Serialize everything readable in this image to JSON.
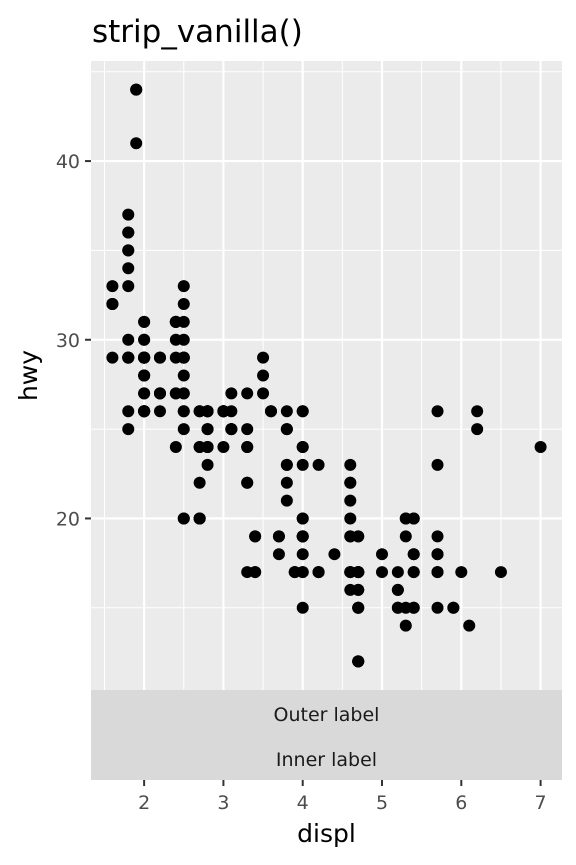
{
  "chart_data": {
    "type": "scatter",
    "title": "strip_vanilla()",
    "xlabel": "displ",
    "ylabel": "hwy",
    "xlim": [
      1.33,
      7.27
    ],
    "ylim": [
      10.4,
      45.6
    ],
    "x_ticks": [
      2,
      3,
      4,
      5,
      6,
      7
    ],
    "x_tick_labels": [
      "2",
      "3",
      "4",
      "5",
      "6",
      "7"
    ],
    "y_ticks": [
      20,
      30,
      40
    ],
    "y_tick_labels": [
      "20",
      "30",
      "40"
    ],
    "grid": true,
    "strips": [
      "Outer label",
      "Inner label"
    ],
    "strip_position": "bottom",
    "point_color": "#000000",
    "panel_background": "#ebebeb",
    "strip_background": "#d9d9d9",
    "points": [
      [
        1.8,
        29
      ],
      [
        1.8,
        29
      ],
      [
        2.0,
        31
      ],
      [
        2.0,
        30
      ],
      [
        2.8,
        26
      ],
      [
        2.8,
        26
      ],
      [
        3.1,
        27
      ],
      [
        1.8,
        26
      ],
      [
        1.8,
        25
      ],
      [
        2.0,
        28
      ],
      [
        2.0,
        27
      ],
      [
        2.8,
        25
      ],
      [
        2.8,
        25
      ],
      [
        3.1,
        25
      ],
      [
        3.1,
        25
      ],
      [
        2.8,
        24
      ],
      [
        3.1,
        25
      ],
      [
        4.2,
        23
      ],
      [
        5.3,
        20
      ],
      [
        5.3,
        15
      ],
      [
        5.3,
        20
      ],
      [
        5.7,
        17
      ],
      [
        6.0,
        17
      ],
      [
        5.7,
        26
      ],
      [
        5.7,
        23
      ],
      [
        6.2,
        26
      ],
      [
        6.2,
        25
      ],
      [
        7.0,
        24
      ],
      [
        5.3,
        19
      ],
      [
        5.3,
        14
      ],
      [
        5.7,
        15
      ],
      [
        6.5,
        17
      ],
      [
        2.4,
        27
      ],
      [
        2.4,
        30
      ],
      [
        3.1,
        26
      ],
      [
        3.5,
        29
      ],
      [
        3.6,
        26
      ],
      [
        2.4,
        24
      ],
      [
        3.0,
        24
      ],
      [
        3.3,
        22
      ],
      [
        3.3,
        22
      ],
      [
        3.3,
        24
      ],
      [
        3.3,
        24
      ],
      [
        3.3,
        17
      ],
      [
        3.8,
        22
      ],
      [
        3.8,
        21
      ],
      [
        3.8,
        23
      ],
      [
        4.0,
        23
      ],
      [
        3.7,
        19
      ],
      [
        3.7,
        18
      ],
      [
        3.9,
        17
      ],
      [
        3.9,
        17
      ],
      [
        4.7,
        19
      ],
      [
        4.7,
        19
      ],
      [
        4.7,
        12
      ],
      [
        5.2,
        17
      ],
      [
        5.2,
        15
      ],
      [
        3.9,
        17
      ],
      [
        4.7,
        17
      ],
      [
        4.7,
        12
      ],
      [
        4.7,
        17
      ],
      [
        5.2,
        16
      ],
      [
        5.7,
        18
      ],
      [
        5.9,
        15
      ],
      [
        4.7,
        16
      ],
      [
        4.7,
        12
      ],
      [
        4.7,
        17
      ],
      [
        4.7,
        17
      ],
      [
        4.7,
        16
      ],
      [
        4.7,
        12
      ],
      [
        5.2,
        15
      ],
      [
        5.2,
        16
      ],
      [
        5.7,
        17
      ],
      [
        5.9,
        15
      ],
      [
        4.6,
        17
      ],
      [
        5.4,
        17
      ],
      [
        5.4,
        18
      ],
      [
        4.0,
        17
      ],
      [
        4.0,
        19
      ],
      [
        4.0,
        17
      ],
      [
        4.0,
        19
      ],
      [
        4.6,
        19
      ],
      [
        5.0,
        17
      ],
      [
        4.2,
        17
      ],
      [
        4.2,
        17
      ],
      [
        4.6,
        16
      ],
      [
        4.6,
        17
      ],
      [
        4.6,
        17
      ],
      [
        5.4,
        15
      ],
      [
        5.4,
        17
      ],
      [
        5.4,
        18
      ],
      [
        3.8,
        26
      ],
      [
        3.8,
        25
      ],
      [
        4.0,
        26
      ],
      [
        4.0,
        24
      ],
      [
        4.6,
        21
      ],
      [
        4.6,
        22
      ],
      [
        4.6,
        23
      ],
      [
        4.6,
        22
      ],
      [
        5.4,
        20
      ],
      [
        1.6,
        33
      ],
      [
        1.6,
        32
      ],
      [
        1.6,
        32
      ],
      [
        1.6,
        29
      ],
      [
        1.6,
        32
      ],
      [
        1.8,
        34
      ],
      [
        1.8,
        36
      ],
      [
        1.8,
        36
      ],
      [
        2.0,
        29
      ],
      [
        2.0,
        26
      ],
      [
        2.0,
        27
      ],
      [
        2.0,
        30
      ],
      [
        2.0,
        31
      ],
      [
        2.7,
        26
      ],
      [
        2.7,
        26
      ],
      [
        3.0,
        26
      ],
      [
        3.7,
        19
      ],
      [
        4.7,
        15
      ],
      [
        4.7,
        15
      ],
      [
        4.7,
        17
      ],
      [
        5.7,
        19
      ],
      [
        6.1,
        14
      ],
      [
        4.0,
        15
      ],
      [
        4.2,
        17
      ],
      [
        4.4,
        18
      ],
      [
        4.6,
        20
      ],
      [
        5.4,
        15
      ],
      [
        5.4,
        20
      ],
      [
        4.0,
        19
      ],
      [
        4.0,
        19
      ],
      [
        4.6,
        19
      ],
      [
        5.0,
        18
      ],
      [
        2.4,
        29
      ],
      [
        2.4,
        27
      ],
      [
        2.5,
        31
      ],
      [
        2.5,
        32
      ],
      [
        3.3,
        27
      ],
      [
        2.0,
        26
      ],
      [
        2.0,
        26
      ],
      [
        2.0,
        28
      ],
      [
        2.0,
        26
      ],
      [
        2.7,
        24
      ],
      [
        2.7,
        24
      ],
      [
        3.3,
        25
      ],
      [
        3.8,
        23
      ],
      [
        3.8,
        25
      ],
      [
        4.0,
        24
      ],
      [
        4.0,
        26
      ],
      [
        2.5,
        26
      ],
      [
        2.5,
        26
      ],
      [
        2.5,
        27
      ],
      [
        2.5,
        25
      ],
      [
        2.5,
        27
      ],
      [
        2.5,
        20
      ],
      [
        2.5,
        20
      ],
      [
        2.2,
        26
      ],
      [
        2.2,
        27
      ],
      [
        2.5,
        30
      ],
      [
        2.5,
        33
      ],
      [
        2.7,
        20
      ],
      [
        2.7,
        20
      ],
      [
        3.4,
        17
      ],
      [
        3.4,
        19
      ],
      [
        4.0,
        20
      ],
      [
        4.7,
        17
      ],
      [
        2.2,
        29
      ],
      [
        2.2,
        27
      ],
      [
        2.4,
        31
      ],
      [
        2.4,
        31
      ],
      [
        3.0,
        26
      ],
      [
        3.0,
        26
      ],
      [
        3.5,
        28
      ],
      [
        2.2,
        27
      ],
      [
        2.2,
        29
      ],
      [
        2.4,
        31
      ],
      [
        2.4,
        31
      ],
      [
        3.0,
        26
      ],
      [
        3.0,
        26
      ],
      [
        3.5,
        27
      ],
      [
        1.8,
        30
      ],
      [
        1.8,
        33
      ],
      [
        1.8,
        35
      ],
      [
        1.8,
        37
      ],
      [
        1.8,
        35
      ],
      [
        4.7,
        15
      ],
      [
        5.7,
        18
      ],
      [
        2.7,
        20
      ],
      [
        2.7,
        20
      ],
      [
        2.7,
        22
      ],
      [
        3.4,
        17
      ],
      [
        3.4,
        19
      ],
      [
        4.0,
        18
      ],
      [
        4.0,
        20
      ],
      [
        2.0,
        29
      ],
      [
        2.0,
        26
      ],
      [
        2.0,
        29
      ],
      [
        2.0,
        29
      ],
      [
        2.8,
        24
      ],
      [
        1.9,
        44
      ],
      [
        2.0,
        29
      ],
      [
        2.0,
        26
      ],
      [
        2.0,
        29
      ],
      [
        2.0,
        29
      ],
      [
        2.5,
        29
      ],
      [
        2.5,
        29
      ],
      [
        2.8,
        23
      ],
      [
        2.8,
        24
      ],
      [
        1.9,
        44
      ],
      [
        1.9,
        41
      ],
      [
        2.0,
        29
      ],
      [
        2.0,
        26
      ],
      [
        2.5,
        28
      ],
      [
        2.5,
        29
      ],
      [
        1.8,
        29
      ],
      [
        1.8,
        29
      ],
      [
        2.0,
        28
      ],
      [
        2.0,
        29
      ],
      [
        2.8,
        26
      ],
      [
        2.8,
        26
      ],
      [
        3.6,
        26
      ]
    ]
  }
}
